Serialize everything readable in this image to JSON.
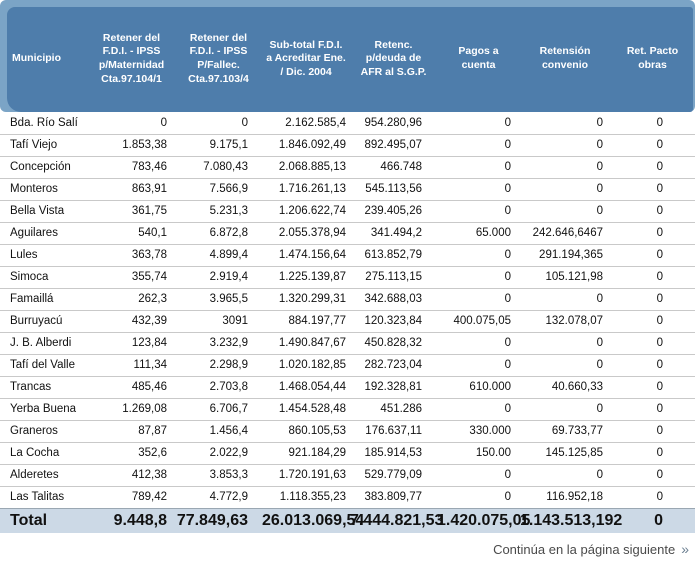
{
  "table": {
    "columns": [
      "Municipio",
      "Retener del F.D.I. - IPSS p/Maternidad Cta.97.104/1",
      "Retener del F.D.I. - IPSS P/Fallec. Cta.97.103/4",
      "Sub-total F.D.I. a Acreditar Ene. / Dic. 2004",
      "Retenc. p/deuda de AFR al S.G.P.",
      "Pagos a cuenta",
      "Retensión convenio",
      "Ret. Pacto obras"
    ],
    "rows": [
      [
        "Bda. Río Salí",
        "0",
        "0",
        "2.162.585,4",
        "954.280,96",
        "0",
        "0",
        "0"
      ],
      [
        "Tafí Viejo",
        "1.853,38",
        "9.175,1",
        "1.846.092,49",
        "892.495,07",
        "0",
        "0",
        "0"
      ],
      [
        "Concepción",
        "783,46",
        "7.080,43",
        "2.068.885,13",
        "466.748",
        "0",
        "0",
        "0"
      ],
      [
        "Monteros",
        "863,91",
        "7.566,9",
        "1.716.261,13",
        "545.113,56",
        "0",
        "0",
        "0"
      ],
      [
        "Bella Vista",
        "361,75",
        "5.231,3",
        "1.206.622,74",
        "239.405,26",
        "0",
        "0",
        "0"
      ],
      [
        "Aguilares",
        "540,1",
        "6.872,8",
        "2.055.378,94",
        "341.494,2",
        "65.000",
        "242.646,6467",
        "0"
      ],
      [
        "Lules",
        "363,78",
        "4.899,4",
        "1.474.156,64",
        "613.852,79",
        "0",
        "291.194,365",
        "0"
      ],
      [
        "Simoca",
        "355,74",
        "2.919,4",
        "1.225.139,87",
        "275.113,15",
        "0",
        "105.121,98",
        "0"
      ],
      [
        "Famaillá",
        "262,3",
        "3.965,5",
        "1.320.299,31",
        "342.688,03",
        "0",
        "0",
        "0"
      ],
      [
        "Burruyacú",
        "432,39",
        "3091",
        "884.197,77",
        "120.323,84",
        "400.075,05",
        "132.078,07",
        "0"
      ],
      [
        "J. B. Alberdi",
        "123,84",
        "3.232,9",
        "1.490.847,67",
        "450.828,32",
        "0",
        "0",
        "0"
      ],
      [
        "Tafí del Valle",
        "111,34",
        "2.298,9",
        "1.020.182,85",
        "282.723,04",
        "0",
        "0",
        "0"
      ],
      [
        "Trancas",
        "485,46",
        "2.703,8",
        "1.468.054,44",
        "192.328,81",
        "610.000",
        "40.660,33",
        "0"
      ],
      [
        "Yerba Buena",
        "1.269,08",
        "6.706,7",
        "1.454.528,48",
        "451.286",
        "0",
        "0",
        "0"
      ],
      [
        "Graneros",
        "87,87",
        "1.456,4",
        "860.105,53",
        "176.637,11",
        "330.000",
        "69.733,77",
        "0"
      ],
      [
        "La Cocha",
        "352,6",
        "2.022,9",
        "921.184,29",
        "185.914,53",
        "150.00",
        "145.125,85",
        "0"
      ],
      [
        "Alderetes",
        "412,38",
        "3.853,3",
        "1.720.191,63",
        "529.779,09",
        "0",
        "0",
        "0"
      ],
      [
        "Las Talitas",
        "789,42",
        "4.772,9",
        "1.118.355,23",
        "383.809,77",
        "0",
        "116.952,18",
        "0"
      ]
    ],
    "total_row": [
      "Total",
      "9.448,8",
      "77.849,63",
      "26.013.069,54",
      "7.444.821,53",
      "1.420.075,05",
      "1.143.513,192",
      "0"
    ]
  },
  "footer": {
    "continuation_label": "Continúa en la página siguiente",
    "continuation_icon": "»"
  },
  "colors": {
    "band": "#7ba4c6",
    "header": "#4e7dab",
    "header_text": "#ffffff",
    "total_row_bg": "#ccd9e6",
    "row_separator": "#c9c9c9",
    "footer_text": "#4a4a4a"
  }
}
